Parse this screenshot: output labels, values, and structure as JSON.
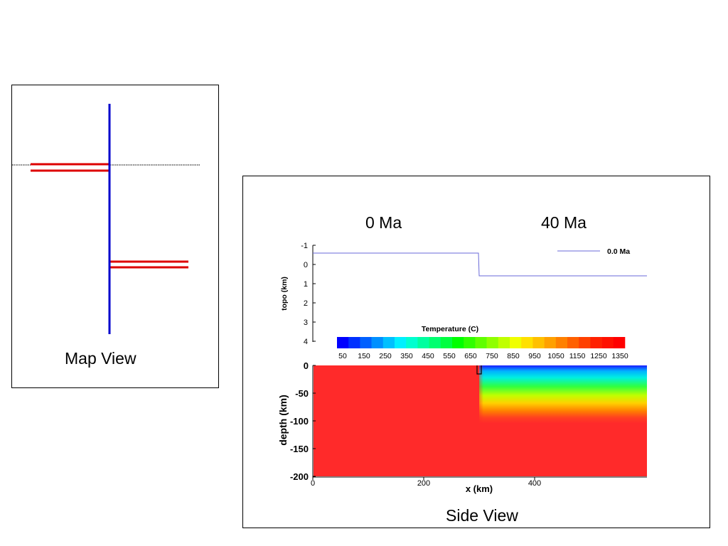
{
  "map_view": {
    "caption": "Map View",
    "colors": {
      "ridge": "#0000cc",
      "transform": "#dd0000",
      "section_line": "#000000"
    }
  },
  "side_view": {
    "caption": "Side View",
    "age_labels": [
      "0 Ma",
      "40 Ma"
    ],
    "topo_plot": {
      "ylabel": "topo (km)",
      "y_ticks": [
        "-1",
        "0",
        "1",
        "2",
        "3",
        "4"
      ],
      "legend": "0.0 Ma",
      "line_color": "#6a6ad8"
    },
    "colorbar": {
      "title": "Temperature (C)",
      "tick_labels": [
        "50",
        "150",
        "250",
        "350",
        "450",
        "550",
        "650",
        "750",
        "850",
        "950",
        "1050",
        "1150",
        "1250",
        "1350"
      ],
      "colors": [
        "#0000ff",
        "#0030ff",
        "#0060ff",
        "#0090ff",
        "#00c0ff",
        "#00f0ff",
        "#00ffd0",
        "#00ffa0",
        "#00ff70",
        "#00ff40",
        "#00ff00",
        "#30ff00",
        "#60ff00",
        "#90ff00",
        "#c0ff00",
        "#f0ff00",
        "#ffe000",
        "#ffc000",
        "#ffa000",
        "#ff8000",
        "#ff6000",
        "#ff4000",
        "#ff2000",
        "#ff1000",
        "#ff0000"
      ]
    },
    "temperature_plot": {
      "xlabel": "x (km)",
      "ylabel": "depth (km)",
      "x_ticks": [
        "0",
        "200",
        "400"
      ],
      "y_ticks": [
        "0",
        "-50",
        "-100",
        "-150",
        "-200"
      ],
      "colors": {
        "mantle": "#ff2a2a"
      }
    }
  }
}
